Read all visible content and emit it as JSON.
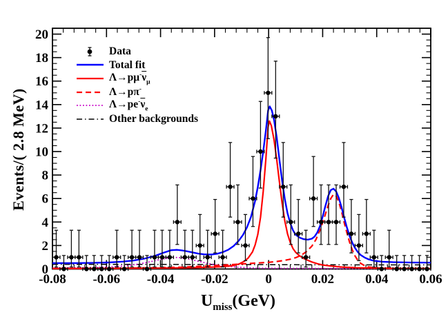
{
  "chart_data": {
    "type": "composite",
    "subtype": "hep-binned-data-with-fit-curves",
    "title": "",
    "ylabel": "Events/( 2.8 MeV)",
    "xlabel_segments": [
      {
        "t": "U"
      },
      {
        "t": "miss",
        "style": "sub"
      },
      {
        "t": "(GeV)"
      }
    ],
    "xlim": [
      -0.08,
      0.06
    ],
    "ylim": [
      0,
      20.5
    ],
    "x_major_step": 0.02,
    "x_minor_step": 0.004,
    "y_major_step": 2,
    "y_minor_step": 0.5,
    "x_tick_labels": [
      "-0.08",
      "-0.06",
      "-0.04",
      "-0.02",
      "0",
      "0.02",
      "0.04",
      "0.06"
    ],
    "y_tick_labels": [
      "0",
      "2",
      "4",
      "6",
      "8",
      "10",
      "12",
      "14",
      "16",
      "18",
      "20"
    ],
    "grid": false,
    "legend_position": "top-left-inside",
    "bin_width_gev": 0.0028,
    "data_points": {
      "id": "data",
      "label_segments": [
        {
          "t": "Data"
        }
      ],
      "marker": "filled-circle",
      "color": "#000000",
      "x": [
        -0.0786,
        -0.0758,
        -0.073,
        -0.0702,
        -0.0674,
        -0.0646,
        -0.0618,
        -0.059,
        -0.0562,
        -0.0534,
        -0.0506,
        -0.0478,
        -0.045,
        -0.0422,
        -0.0394,
        -0.0366,
        -0.0338,
        -0.031,
        -0.0282,
        -0.0254,
        -0.0226,
        -0.0198,
        -0.017,
        -0.0142,
        -0.0114,
        -0.0086,
        -0.0058,
        -0.003,
        -0.0002,
        0.0026,
        0.0054,
        0.0082,
        0.011,
        0.0138,
        0.0166,
        0.0194,
        0.0222,
        0.025,
        0.0278,
        0.0306,
        0.0334,
        0.0362,
        0.039,
        0.0418,
        0.0446,
        0.0474,
        0.0502,
        0.053,
        0.0558,
        0.0586
      ],
      "y": [
        1,
        0,
        1,
        1,
        0,
        0,
        0,
        0,
        1,
        0,
        1,
        1,
        0,
        1,
        1,
        1,
        4,
        1,
        1,
        2,
        1,
        3,
        1,
        7,
        4,
        2,
        6,
        10,
        15,
        13,
        7,
        4,
        3,
        1,
        6,
        4,
        4,
        4,
        7,
        3,
        2,
        3,
        1,
        0,
        1,
        0,
        0,
        0,
        0,
        0
      ]
    },
    "poisson_errors": {
      "0": [
        0,
        1.15
      ],
      "1": [
        0.83,
        2.3
      ],
      "2": [
        1.29,
        2.64
      ],
      "3": [
        1.63,
        2.92
      ],
      "4": [
        1.91,
        3.16
      ],
      "6": [
        2.38,
        3.58
      ],
      "7": [
        2.58,
        3.77
      ],
      "10": [
        3.11,
        4.27
      ],
      "13": [
        3.56,
        4.7
      ],
      "15": [
        3.9,
        4.7
      ]
    },
    "curves": [
      {
        "id": "total-fit",
        "label_segments": [
          {
            "t": "Total fit"
          }
        ],
        "color": "#0000ff",
        "style": "solid",
        "width": 2.4,
        "points": [
          [
            -0.08,
            0.5
          ],
          [
            -0.072,
            0.5
          ],
          [
            -0.065,
            0.52
          ],
          [
            -0.059,
            0.56
          ],
          [
            -0.054,
            0.63
          ],
          [
            -0.05,
            0.72
          ],
          [
            -0.046,
            0.88
          ],
          [
            -0.042,
            1.12
          ],
          [
            -0.039,
            1.38
          ],
          [
            -0.036,
            1.6
          ],
          [
            -0.034,
            1.63
          ],
          [
            -0.032,
            1.58
          ],
          [
            -0.03,
            1.5
          ],
          [
            -0.028,
            1.4
          ],
          [
            -0.026,
            1.31
          ],
          [
            -0.024,
            1.25
          ],
          [
            -0.0225,
            1.23
          ],
          [
            -0.021,
            1.24
          ],
          [
            -0.019,
            1.3
          ],
          [
            -0.017,
            1.43
          ],
          [
            -0.015,
            1.63
          ],
          [
            -0.013,
            1.95
          ],
          [
            -0.011,
            2.42
          ],
          [
            -0.0095,
            2.9
          ],
          [
            -0.008,
            3.55
          ],
          [
            -0.0065,
            4.45
          ],
          [
            -0.005,
            5.8
          ],
          [
            -0.004,
            7.0
          ],
          [
            -0.003,
            8.4
          ],
          [
            -0.002,
            10.0
          ],
          [
            -0.001,
            11.8
          ],
          [
            -0.0002,
            13.5
          ],
          [
            0.0004,
            13.85
          ],
          [
            0.0012,
            13.5
          ],
          [
            0.002,
            12.7
          ],
          [
            0.003,
            11.2
          ],
          [
            0.004,
            9.3
          ],
          [
            0.005,
            7.5
          ],
          [
            0.006,
            5.95
          ],
          [
            0.007,
            4.75
          ],
          [
            0.008,
            3.9
          ],
          [
            0.009,
            3.3
          ],
          [
            0.01,
            2.92
          ],
          [
            0.0115,
            2.67
          ],
          [
            0.013,
            2.54
          ],
          [
            0.0145,
            2.5
          ],
          [
            0.016,
            2.58
          ],
          [
            0.017,
            2.76
          ],
          [
            0.018,
            3.1
          ],
          [
            0.019,
            3.65
          ],
          [
            0.02,
            4.45
          ],
          [
            0.021,
            5.35
          ],
          [
            0.022,
            6.2
          ],
          [
            0.023,
            6.72
          ],
          [
            0.024,
            6.84
          ],
          [
            0.025,
            6.6
          ],
          [
            0.026,
            6.05
          ],
          [
            0.027,
            5.25
          ],
          [
            0.028,
            4.35
          ],
          [
            0.029,
            3.5
          ],
          [
            0.03,
            2.78
          ],
          [
            0.031,
            2.22
          ],
          [
            0.032,
            1.78
          ],
          [
            0.033,
            1.45
          ],
          [
            0.034,
            1.2
          ],
          [
            0.0355,
            0.98
          ],
          [
            0.037,
            0.82
          ],
          [
            0.039,
            0.7
          ],
          [
            0.042,
            0.62
          ],
          [
            0.046,
            0.58
          ],
          [
            0.052,
            0.55
          ],
          [
            0.06,
            0.54
          ]
        ]
      },
      {
        "id": "lambda-p-mu-nu",
        "label_segments": [
          {
            "t": "Λ→pμ"
          },
          {
            "t": "-",
            "style": "sup"
          },
          {
            "t": "ν",
            "style": "overline"
          },
          {
            "t": "μ",
            "style": "sub"
          }
        ],
        "color": "#ff0000",
        "style": "solid",
        "width": 2.2,
        "points": [
          [
            -0.08,
            0.04
          ],
          [
            -0.06,
            0.05
          ],
          [
            -0.045,
            0.07
          ],
          [
            -0.035,
            0.09
          ],
          [
            -0.028,
            0.12
          ],
          [
            -0.022,
            0.15
          ],
          [
            -0.018,
            0.19
          ],
          [
            -0.015,
            0.24
          ],
          [
            -0.013,
            0.3
          ],
          [
            -0.011,
            0.42
          ],
          [
            -0.009,
            0.65
          ],
          [
            -0.0075,
            0.95
          ],
          [
            -0.006,
            1.45
          ],
          [
            -0.005,
            2.05
          ],
          [
            -0.004,
            2.95
          ],
          [
            -0.003,
            4.4
          ],
          [
            -0.002,
            6.6
          ],
          [
            -0.001,
            9.4
          ],
          [
            -0.0002,
            12.1
          ],
          [
            0.0003,
            12.6
          ],
          [
            0.001,
            12.2
          ],
          [
            0.002,
            11.0
          ],
          [
            0.003,
            9.3
          ],
          [
            0.004,
            7.4
          ],
          [
            0.005,
            5.6
          ],
          [
            0.006,
            4.1
          ],
          [
            0.007,
            3.0
          ],
          [
            0.008,
            2.25
          ],
          [
            0.009,
            1.75
          ],
          [
            0.01,
            1.42
          ],
          [
            0.0115,
            1.12
          ],
          [
            0.013,
            0.9
          ],
          [
            0.0145,
            0.74
          ],
          [
            0.016,
            0.6
          ],
          [
            0.018,
            0.45
          ],
          [
            0.02,
            0.34
          ],
          [
            0.023,
            0.25
          ],
          [
            0.027,
            0.17
          ],
          [
            0.032,
            0.11
          ],
          [
            0.038,
            0.08
          ],
          [
            0.046,
            0.05
          ],
          [
            0.06,
            0.04
          ]
        ]
      },
      {
        "id": "lambda-p-pi",
        "label_segments": [
          {
            "t": "Λ→pπ"
          },
          {
            "t": "-",
            "style": "sup"
          }
        ],
        "color": "#ff0000",
        "style": "dashed",
        "width": 2.2,
        "points": [
          [
            -0.08,
            0.04
          ],
          [
            -0.065,
            0.05
          ],
          [
            -0.05,
            0.08
          ],
          [
            -0.04,
            0.12
          ],
          [
            -0.032,
            0.16
          ],
          [
            -0.026,
            0.22
          ],
          [
            -0.02,
            0.28
          ],
          [
            -0.015,
            0.35
          ],
          [
            -0.01,
            0.43
          ],
          [
            -0.005,
            0.5
          ],
          [
            0.0,
            0.57
          ],
          [
            0.003,
            0.64
          ],
          [
            0.006,
            0.74
          ],
          [
            0.008,
            0.83
          ],
          [
            0.01,
            0.96
          ],
          [
            0.012,
            1.16
          ],
          [
            0.014,
            1.48
          ],
          [
            0.016,
            1.95
          ],
          [
            0.0175,
            2.5
          ],
          [
            0.019,
            3.3
          ],
          [
            0.02,
            3.95
          ],
          [
            0.021,
            4.65
          ],
          [
            0.022,
            5.4
          ],
          [
            0.023,
            6.0
          ],
          [
            0.024,
            6.35
          ],
          [
            0.025,
            6.22
          ],
          [
            0.026,
            5.7
          ],
          [
            0.027,
            4.9
          ],
          [
            0.028,
            3.95
          ],
          [
            0.029,
            3.05
          ],
          [
            0.03,
            2.25
          ],
          [
            0.031,
            1.6
          ],
          [
            0.032,
            1.1
          ],
          [
            0.033,
            0.74
          ],
          [
            0.034,
            0.49
          ],
          [
            0.0355,
            0.28
          ],
          [
            0.037,
            0.17
          ],
          [
            0.04,
            0.09
          ],
          [
            0.045,
            0.06
          ],
          [
            0.052,
            0.05
          ],
          [
            0.06,
            0.05
          ]
        ]
      },
      {
        "id": "lambda-p-e-nu",
        "label_segments": [
          {
            "t": "Λ→pe"
          },
          {
            "t": "-",
            "style": "sup"
          },
          {
            "t": "ν",
            "style": "overline"
          },
          {
            "t": "e",
            "style": "sub"
          }
        ],
        "color": "#c800c8",
        "style": "dotted",
        "width": 1.8,
        "points": [
          [
            -0.08,
            0.1
          ],
          [
            -0.072,
            0.11
          ],
          [
            -0.065,
            0.13
          ],
          [
            -0.058,
            0.18
          ],
          [
            -0.053,
            0.27
          ],
          [
            -0.049,
            0.39
          ],
          [
            -0.045,
            0.56
          ],
          [
            -0.042,
            0.71
          ],
          [
            -0.039,
            0.86
          ],
          [
            -0.037,
            0.95
          ],
          [
            -0.035,
            0.99
          ],
          [
            -0.033,
            0.97
          ],
          [
            -0.031,
            0.91
          ],
          [
            -0.029,
            0.82
          ],
          [
            -0.027,
            0.71
          ],
          [
            -0.025,
            0.6
          ],
          [
            -0.023,
            0.5
          ],
          [
            -0.021,
            0.41
          ],
          [
            -0.019,
            0.33
          ],
          [
            -0.017,
            0.27
          ],
          [
            -0.015,
            0.22
          ],
          [
            -0.013,
            0.18
          ],
          [
            -0.011,
            0.15
          ],
          [
            -0.009,
            0.12
          ],
          [
            -0.006,
            0.09
          ],
          [
            -0.002,
            0.07
          ],
          [
            0.004,
            0.06
          ],
          [
            0.012,
            0.05
          ],
          [
            0.025,
            0.04
          ],
          [
            0.06,
            0.04
          ]
        ]
      },
      {
        "id": "other-backgrounds",
        "label_segments": [
          {
            "t": "Other backgrounds"
          }
        ],
        "color": "#000000",
        "style": "dashdot",
        "width": 1.5,
        "points": [
          [
            -0.08,
            0.4
          ],
          [
            -0.06,
            0.4
          ],
          [
            -0.04,
            0.39
          ],
          [
            -0.02,
            0.38
          ],
          [
            0.0,
            0.37
          ],
          [
            0.02,
            0.36
          ],
          [
            0.04,
            0.35
          ],
          [
            0.06,
            0.35
          ]
        ]
      }
    ]
  }
}
